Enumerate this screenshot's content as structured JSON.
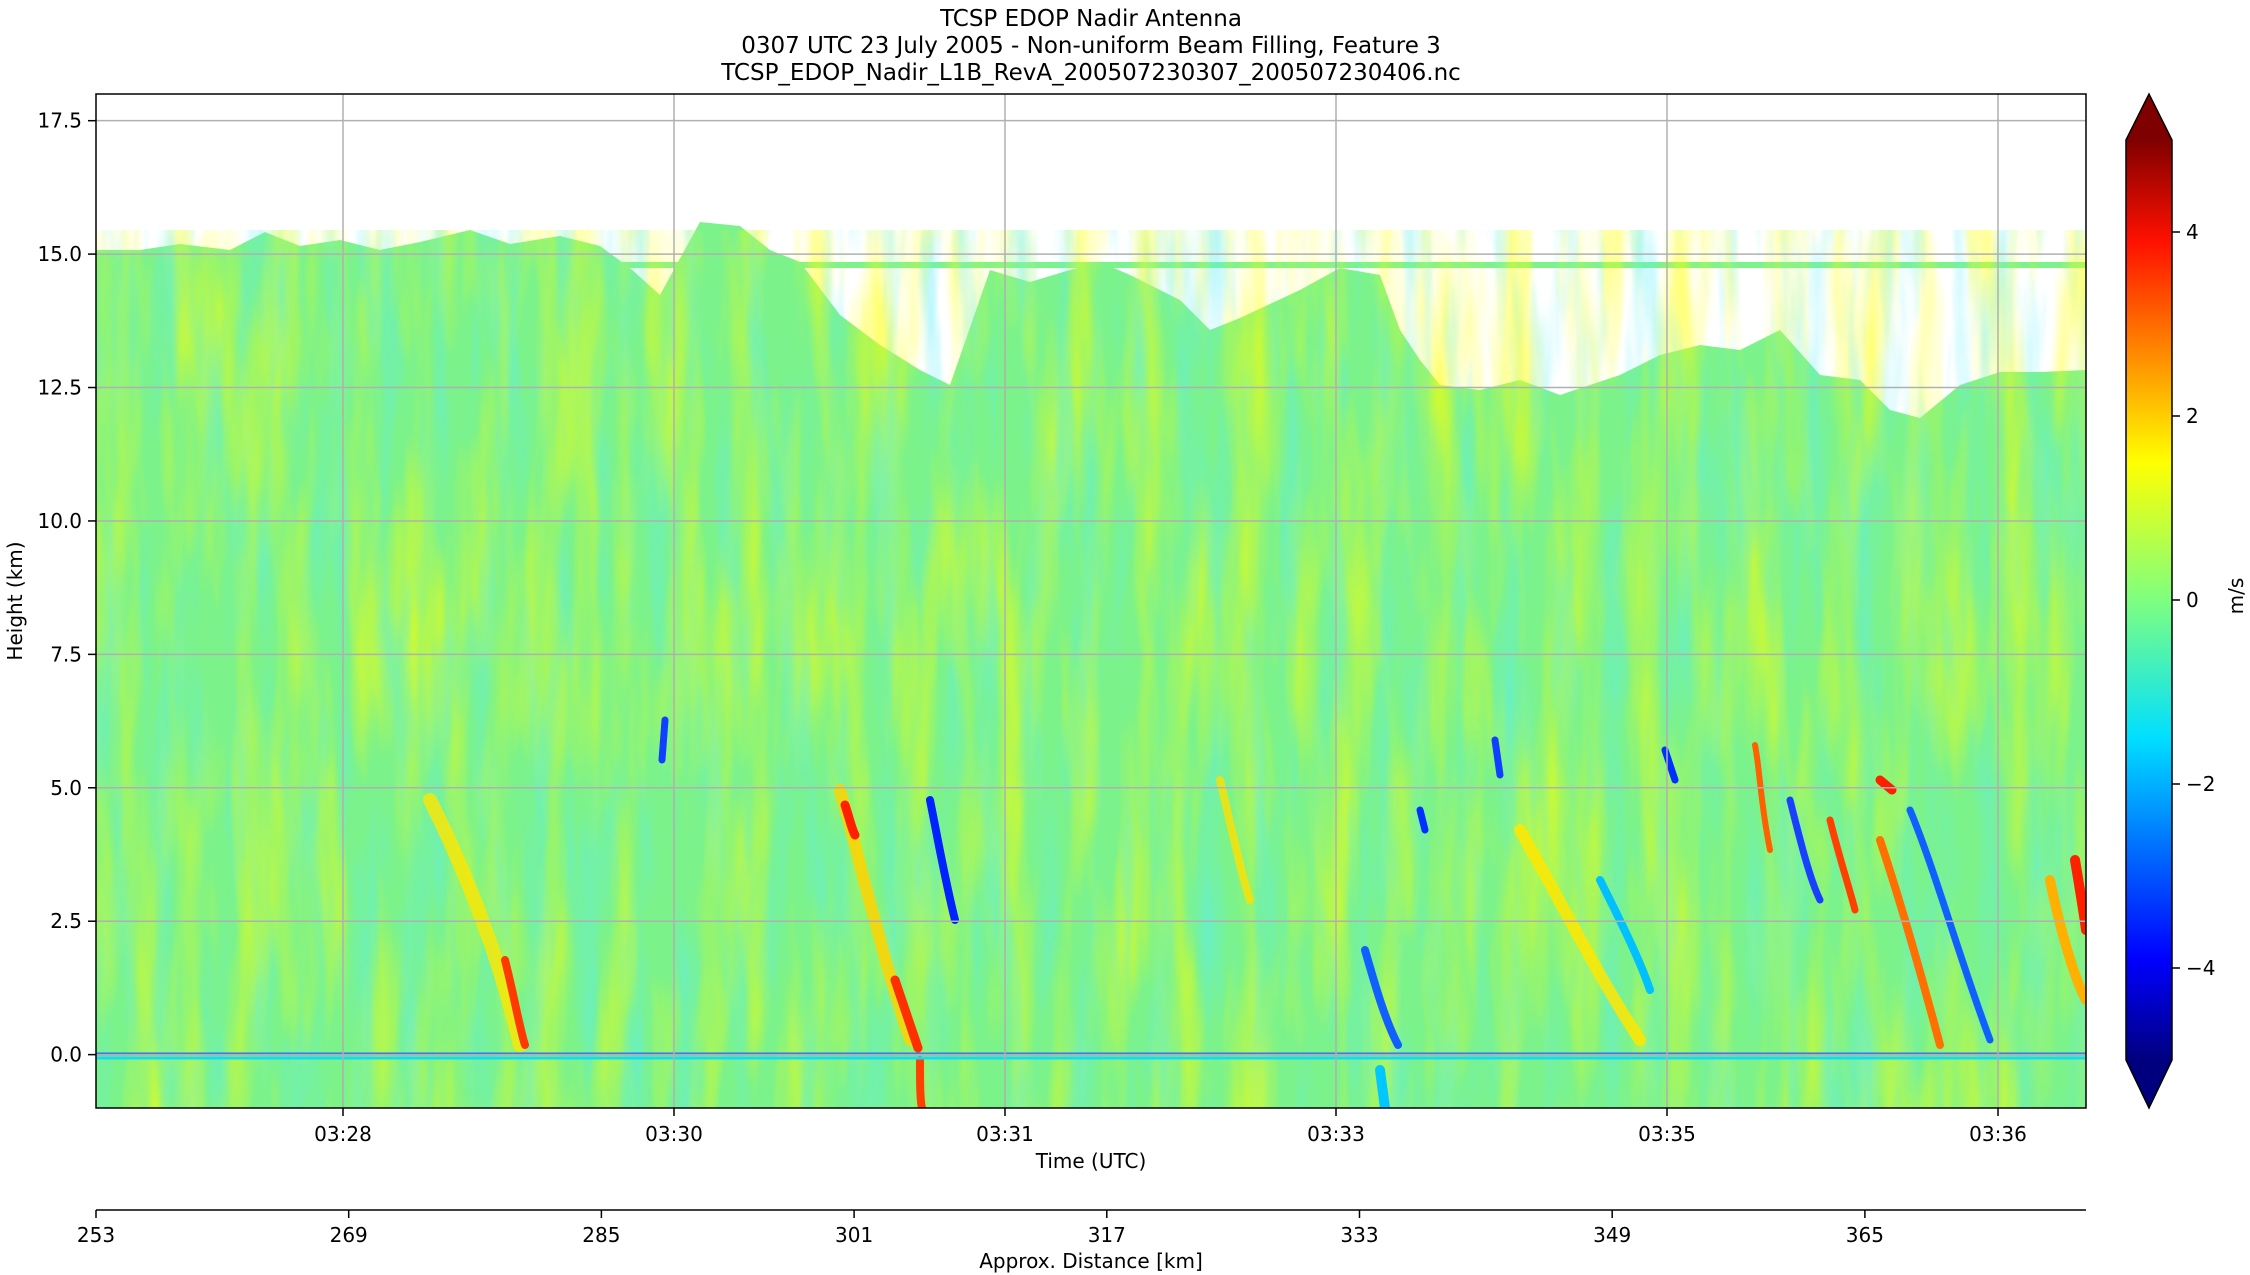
{
  "chart_data": {
    "type": "heatmap",
    "title": "TCSP EDOP Nadir Antenna",
    "subtitle": "0307 UTC 23 July 2005 - Non-uniform Beam Filling, Feature 3",
    "filename": "TCSP_EDOP_Nadir_L1B_RevA_200507230307_200507230406.nc",
    "xlabel": "Time (UTC)",
    "ylabel": "Height (km)",
    "xticks": [
      "03:28",
      "03:30",
      "03:31",
      "03:33",
      "03:35",
      "03:36"
    ],
    "ylim": [
      -1.0,
      18.0
    ],
    "yticks": [
      0.0,
      2.5,
      5.0,
      7.5,
      10.0,
      12.5,
      15.0,
      17.5
    ],
    "ytick_labels": [
      "0.0",
      "2.5",
      "5.0",
      "7.5",
      "10.0",
      "12.5",
      "15.0",
      "17.5"
    ],
    "grid": true,
    "secondary_axis": {
      "label": "Approx. Distance [km]",
      "range": [
        253,
        379
      ],
      "ticks": [
        253,
        269,
        285,
        301,
        317,
        333,
        349,
        365
      ],
      "tick_labels": [
        "253",
        "269",
        "285",
        "301",
        "317",
        "333",
        "349",
        "365"
      ]
    },
    "colorbar": {
      "label": "m/s",
      "colormap": "jet",
      "range": [
        -5,
        5
      ],
      "extend": "both",
      "ticks": [
        -4,
        -2,
        0,
        2,
        4
      ],
      "tick_labels": [
        "−4",
        "−2",
        "0",
        "2",
        "4"
      ]
    },
    "features": {
      "echo_top_km": [
        15.0,
        12.5
      ],
      "melting_layer_km": 4.8,
      "surface_km": 0.0,
      "velocity_min": -4.5,
      "velocity_max": 4.5
    },
    "colors": {
      "background_echo": "#7cf28a",
      "updraft": "#ffe600",
      "strong_updraft": "#ff2a00",
      "downdraft": "#1ad8f0",
      "strong_downdraft": "#0022ff",
      "grid": "#b0b0b0"
    }
  }
}
